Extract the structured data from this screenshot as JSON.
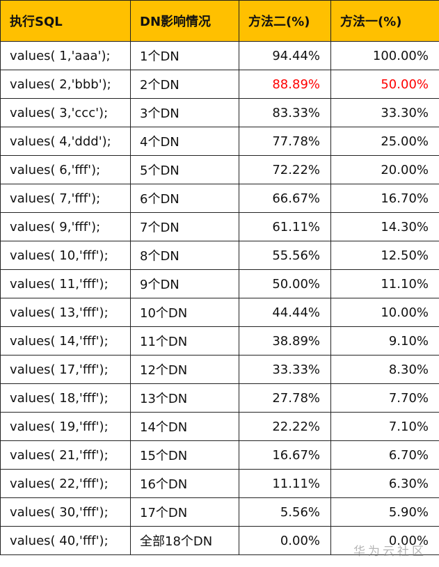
{
  "table": {
    "header": [
      "执行SQL",
      "DN影响情况",
      "方法二(%)",
      "方法一(%)"
    ],
    "rows": [
      [
        "values( 1,'aaa');",
        "1个DN",
        "94.44%",
        "100.00%"
      ],
      [
        "values( 2,'bbb');",
        "2个DN",
        "88.89%",
        "50.00%"
      ],
      [
        "values( 3,'ccc');",
        "3个DN",
        "83.33%",
        "33.30%"
      ],
      [
        "values( 4,'ddd');",
        "4个DN",
        "77.78%",
        "25.00%"
      ],
      [
        "values( 6,'fff');",
        "5个DN",
        "72.22%",
        "20.00%"
      ],
      [
        "values( 7,'fff');",
        "6个DN",
        "66.67%",
        "16.70%"
      ],
      [
        "values( 9,'fff');",
        "7个DN",
        "61.11%",
        "14.30%"
      ],
      [
        "values( 10,'fff');",
        "8个DN",
        "55.56%",
        "12.50%"
      ],
      [
        "values( 11,'fff');",
        "9个DN",
        "50.00%",
        "11.10%"
      ],
      [
        "values( 13,'fff');",
        "10个DN",
        "44.44%",
        "10.00%"
      ],
      [
        "values( 14,'fff');",
        "11个DN",
        "38.89%",
        "9.10%"
      ],
      [
        "values( 17,'fff');",
        "12个DN",
        "33.33%",
        "8.30%"
      ],
      [
        "values( 18,'fff');",
        "13个DN",
        "27.78%",
        "7.70%"
      ],
      [
        "values( 19,'fff');",
        "14个DN",
        "22.22%",
        "7.10%"
      ],
      [
        "values( 21,'fff');",
        "15个DN",
        "16.67%",
        "6.70%"
      ],
      [
        "values( 22,'fff');",
        "16个DN",
        "11.11%",
        "6.30%"
      ],
      [
        "values( 30,'fff');",
        "17个DN",
        "5.56%",
        "5.90%"
      ],
      [
        "values( 40,'fff');",
        "全部18个DN",
        "0.00%",
        "0.00%"
      ]
    ]
  },
  "watermark": "华为云社区"
}
